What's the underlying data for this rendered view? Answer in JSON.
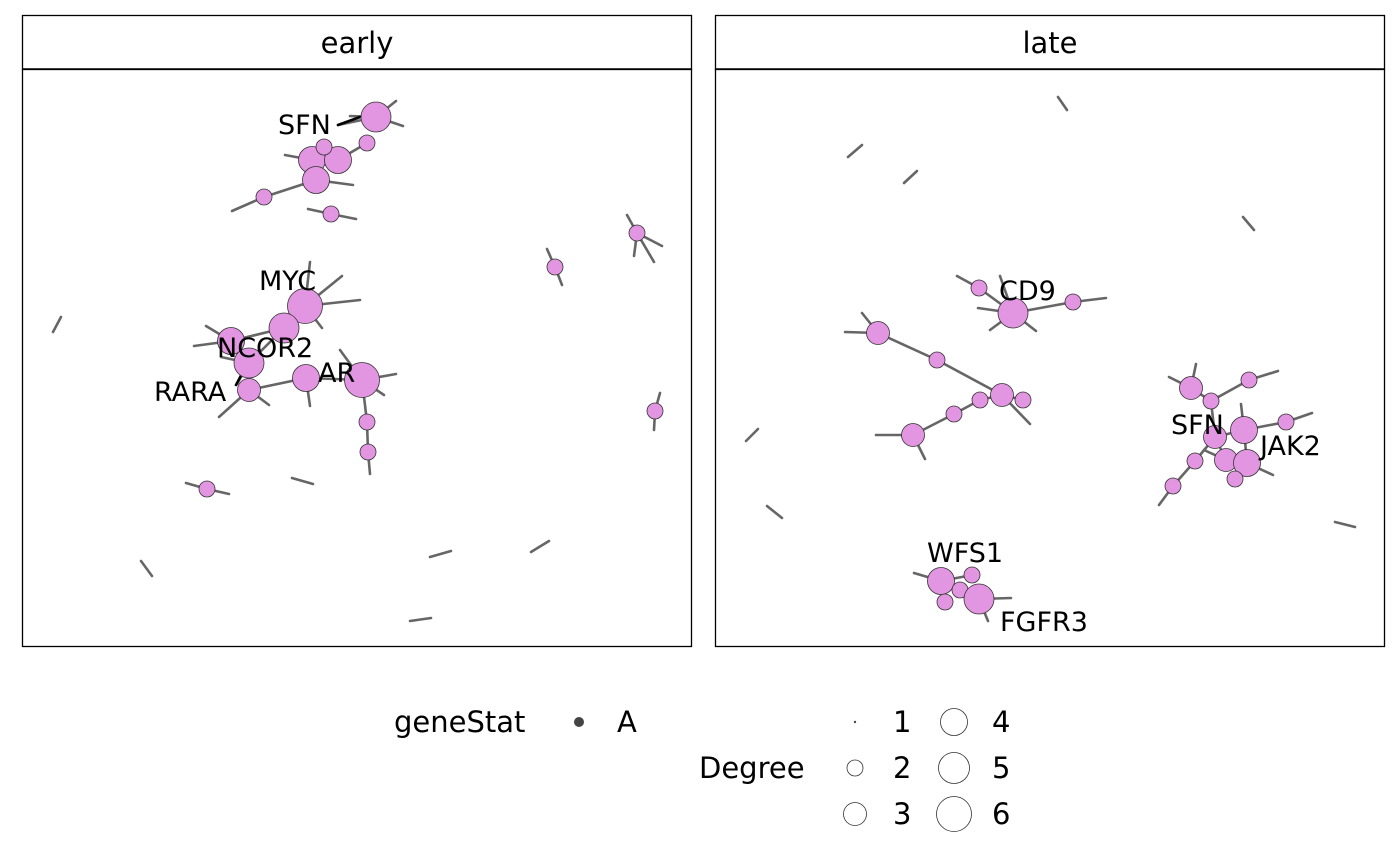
{
  "panels": [
    {
      "name": "early",
      "labels": [
        "SFN",
        "MYC",
        "NCOR2",
        "AR",
        "RARA"
      ]
    },
    {
      "name": "late",
      "labels": [
        "CD9",
        "SFN",
        "JAK2",
        "WFS1",
        "FGFR3"
      ]
    }
  ],
  "legend": {
    "genestat_title": "geneStat",
    "genestat_value": "A",
    "degree_title": "Degree",
    "degree_values": [
      "1",
      "2",
      "3",
      "4",
      "5",
      "6"
    ]
  },
  "colors": {
    "node_fill": "#e295e0",
    "node_stroke": "#333333",
    "edge": "#666666",
    "legend_dot": "#444444"
  }
}
